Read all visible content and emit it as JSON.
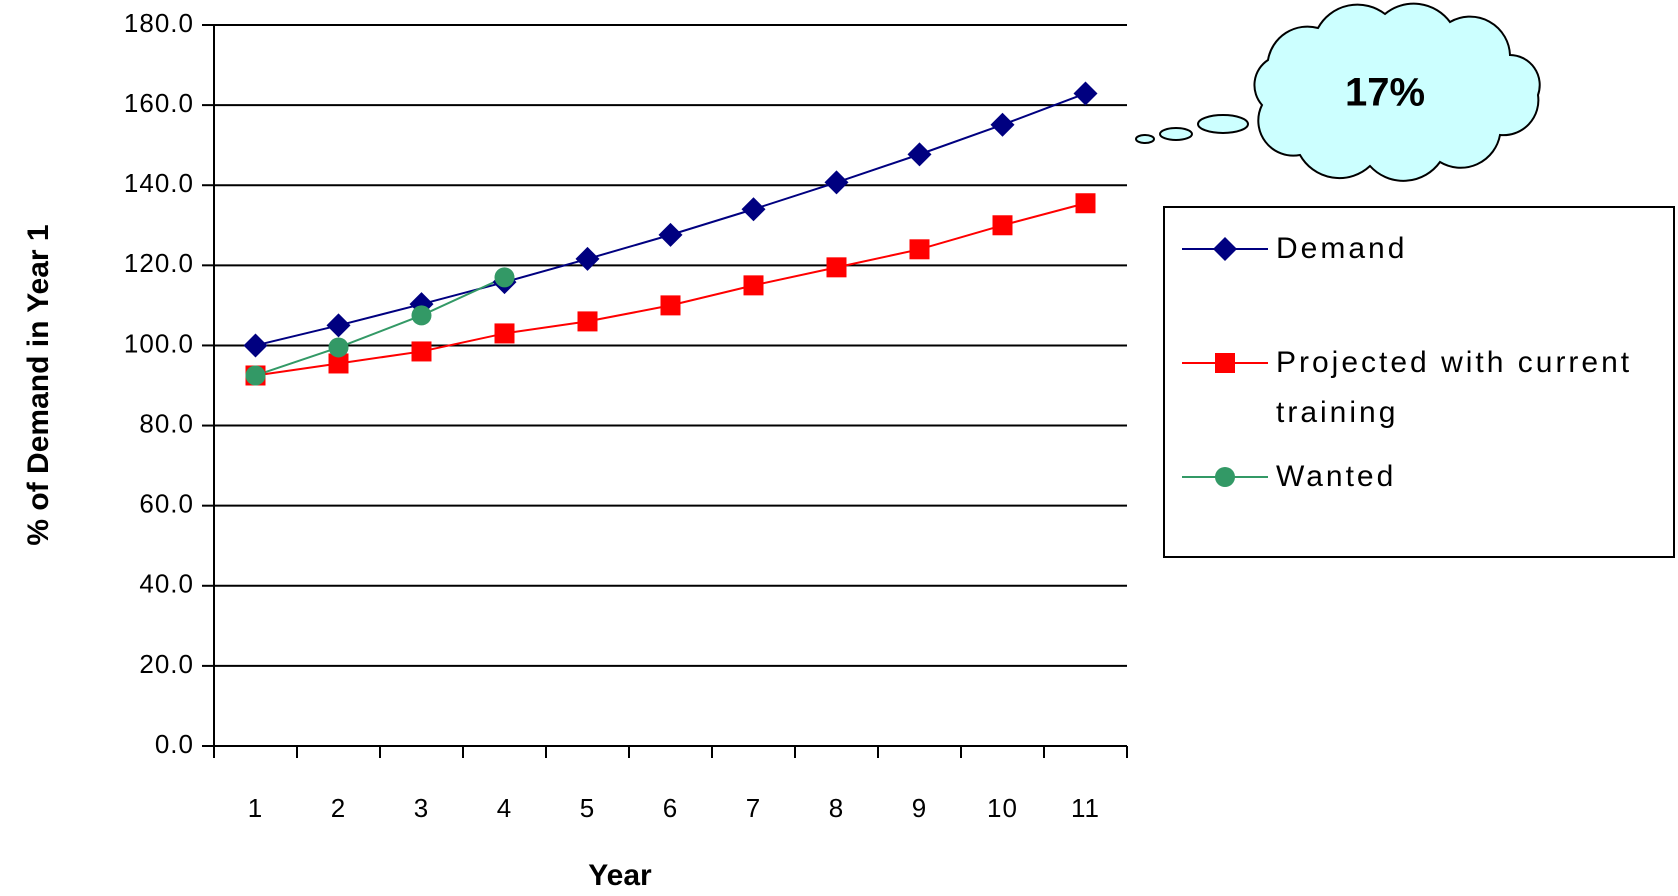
{
  "chart_data": {
    "type": "line",
    "x_label": "Year",
    "y_label": "% of Demand in Year 1",
    "annotation": "17%",
    "categories": [
      "1",
      "2",
      "3",
      "4",
      "5",
      "6",
      "7",
      "8",
      "9",
      "10",
      "11"
    ],
    "series": [
      {
        "name": "Demand",
        "color": "#000080",
        "marker": "diamond",
        "values": [
          100,
          105,
          110.3,
          115.8,
          121.6,
          127.6,
          134,
          140.7,
          147.7,
          155.1,
          162.9
        ]
      },
      {
        "name": "Projected with current training",
        "color": "#ff0000",
        "marker": "square",
        "values": [
          92.5,
          95.5,
          98.5,
          103,
          106,
          110,
          115,
          119.5,
          124,
          130,
          135.5
        ]
      },
      {
        "name": "Wanted",
        "color": "#339966",
        "marker": "circle",
        "values": [
          92.5,
          99.5,
          107.5,
          117,
          null,
          null,
          null,
          null,
          null,
          null,
          null
        ]
      }
    ],
    "ylim": [
      0,
      180
    ],
    "yticks": [
      {
        "value": 0,
        "label": "0.0"
      },
      {
        "value": 20,
        "label": "20.0"
      },
      {
        "value": 40,
        "label": "40.0"
      },
      {
        "value": 60,
        "label": "60.0"
      },
      {
        "value": 80,
        "label": "80.0"
      },
      {
        "value": 100,
        "label": "100.0"
      },
      {
        "value": 120,
        "label": "120.0"
      },
      {
        "value": 140,
        "label": "140.0"
      },
      {
        "value": 160,
        "label": "160.0"
      },
      {
        "value": 180,
        "label": "180.0"
      }
    ],
    "grid": true,
    "legend": "right"
  }
}
